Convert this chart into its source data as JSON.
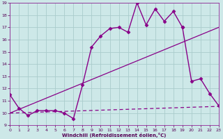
{
  "background_color": "#cde8e8",
  "grid_color": "#aacccc",
  "line_color": "#880088",
  "xlabel": "Windchill (Refroidissement éolien,°C)",
  "xlim": [
    0,
    23
  ],
  "ylim": [
    9,
    19
  ],
  "yticks": [
    9,
    10,
    11,
    12,
    13,
    14,
    15,
    16,
    17,
    18,
    19
  ],
  "xticks": [
    0,
    1,
    2,
    3,
    4,
    5,
    6,
    7,
    8,
    9,
    10,
    11,
    12,
    13,
    14,
    15,
    16,
    17,
    18,
    19,
    20,
    21,
    22,
    23
  ],
  "series": [
    {
      "x": [
        0,
        1,
        2,
        3,
        4,
        5,
        6,
        7,
        8,
        9,
        10,
        11,
        12,
        13,
        14,
        15,
        16,
        17,
        18,
        19
      ],
      "y": [
        11.5,
        10.4,
        9.8,
        10.2,
        10.2,
        10.2,
        10.0,
        9.55,
        12.3,
        15.4,
        16.3,
        16.9,
        17.0,
        16.6,
        19.0,
        17.2,
        18.5,
        17.5,
        18.3,
        17.0
      ],
      "style": "-",
      "marker": "D",
      "markersize": 2.5,
      "linewidth": 1.0,
      "dashes": []
    },
    {
      "x": [
        19,
        20,
        21,
        22,
        23
      ],
      "y": [
        17.0,
        12.6,
        12.8,
        11.6,
        10.6
      ],
      "style": "-",
      "marker": "D",
      "markersize": 2.5,
      "linewidth": 1.0,
      "dashes": []
    },
    {
      "x": [
        0,
        23
      ],
      "y": [
        10.0,
        17.0
      ],
      "style": "-",
      "marker": null,
      "markersize": 0,
      "linewidth": 0.9,
      "dashes": []
    },
    {
      "x": [
        0,
        23
      ],
      "y": [
        10.0,
        10.55
      ],
      "style": "--",
      "marker": null,
      "markersize": 0,
      "linewidth": 0.9,
      "dashes": [
        4,
        3
      ]
    }
  ]
}
